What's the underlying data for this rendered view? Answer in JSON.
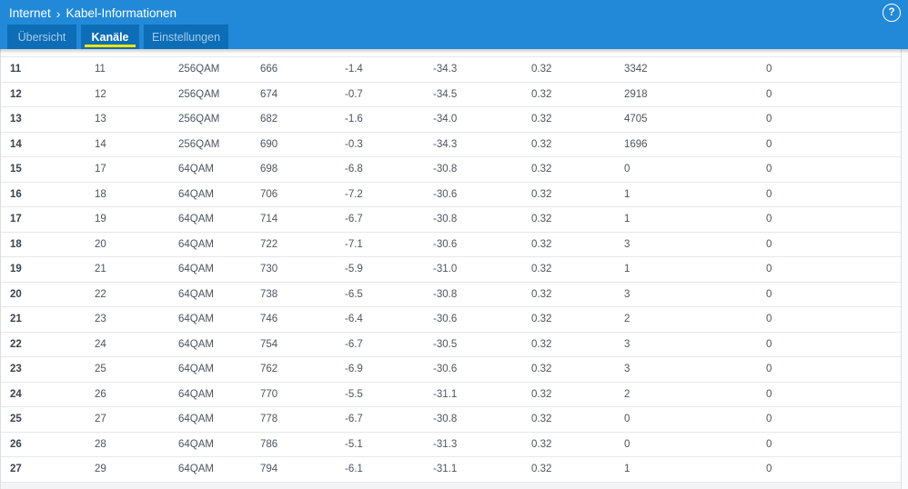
{
  "colors": {
    "header_bar": "#2189d8",
    "tab_background": "#0d6db6",
    "active_tab_underline": "#ffe600",
    "inactive_tab_text": "#a6cded",
    "table_text": "#4a5560"
  },
  "header": {
    "breadcrumb": {
      "items": [
        "Internet",
        "Kabel-Informationen"
      ],
      "separator": "›"
    },
    "help_icon_label": "?",
    "tabs": [
      {
        "label": "Übersicht",
        "active": false
      },
      {
        "label": "Kanäle",
        "active": true
      },
      {
        "label": "Einstellungen",
        "active": false
      }
    ]
  },
  "table": {
    "rows": [
      [
        "11",
        "11",
        "256QAM",
        "666",
        "-1.4",
        "-34.3",
        "0.32",
        "3342",
        "0"
      ],
      [
        "12",
        "12",
        "256QAM",
        "674",
        "-0.7",
        "-34.5",
        "0.32",
        "2918",
        "0"
      ],
      [
        "13",
        "13",
        "256QAM",
        "682",
        "-1.6",
        "-34.0",
        "0.32",
        "4705",
        "0"
      ],
      [
        "14",
        "14",
        "256QAM",
        "690",
        "-0.3",
        "-34.3",
        "0.32",
        "1696",
        "0"
      ],
      [
        "15",
        "17",
        "64QAM",
        "698",
        "-6.8",
        "-30.8",
        "0.32",
        "0",
        "0"
      ],
      [
        "16",
        "18",
        "64QAM",
        "706",
        "-7.2",
        "-30.6",
        "0.32",
        "1",
        "0"
      ],
      [
        "17",
        "19",
        "64QAM",
        "714",
        "-6.7",
        "-30.8",
        "0.32",
        "1",
        "0"
      ],
      [
        "18",
        "20",
        "64QAM",
        "722",
        "-7.1",
        "-30.6",
        "0.32",
        "3",
        "0"
      ],
      [
        "19",
        "21",
        "64QAM",
        "730",
        "-5.9",
        "-31.0",
        "0.32",
        "1",
        "0"
      ],
      [
        "20",
        "22",
        "64QAM",
        "738",
        "-6.5",
        "-30.8",
        "0.32",
        "3",
        "0"
      ],
      [
        "21",
        "23",
        "64QAM",
        "746",
        "-6.4",
        "-30.6",
        "0.32",
        "2",
        "0"
      ],
      [
        "22",
        "24",
        "64QAM",
        "754",
        "-6.7",
        "-30.5",
        "0.32",
        "3",
        "0"
      ],
      [
        "23",
        "25",
        "64QAM",
        "762",
        "-6.9",
        "-30.6",
        "0.32",
        "3",
        "0"
      ],
      [
        "24",
        "26",
        "64QAM",
        "770",
        "-5.5",
        "-31.1",
        "0.32",
        "2",
        "0"
      ],
      [
        "25",
        "27",
        "64QAM",
        "778",
        "-6.7",
        "-30.8",
        "0.32",
        "0",
        "0"
      ],
      [
        "26",
        "28",
        "64QAM",
        "786",
        "-5.1",
        "-31.3",
        "0.32",
        "0",
        "0"
      ],
      [
        "27",
        "29",
        "64QAM",
        "794",
        "-6.1",
        "-31.1",
        "0.32",
        "1",
        "0"
      ]
    ]
  }
}
